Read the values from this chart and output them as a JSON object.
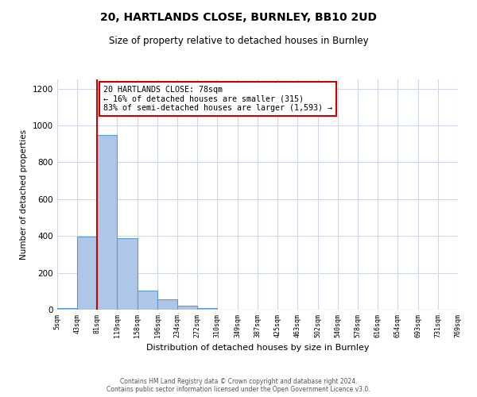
{
  "title": "20, HARTLANDS CLOSE, BURNLEY, BB10 2UD",
  "subtitle": "Size of property relative to detached houses in Burnley",
  "xlabel": "Distribution of detached houses by size in Burnley",
  "ylabel": "Number of detached properties",
  "bar_edges": [
    5,
    43,
    81,
    119,
    158,
    196,
    234,
    272,
    310,
    349,
    387,
    425,
    463,
    502,
    540,
    578,
    616,
    654,
    693,
    731,
    769
  ],
  "bar_heights": [
    10,
    395,
    950,
    390,
    105,
    55,
    22,
    8,
    2,
    0,
    0,
    0,
    0,
    0,
    0,
    0,
    0,
    0,
    0,
    0
  ],
  "bar_color": "#aec6e8",
  "bar_edge_color": "#5b9bd5",
  "property_line_x": 81,
  "property_line_color": "#cc0000",
  "annotation_text": "20 HARTLANDS CLOSE: 78sqm\n← 16% of detached houses are smaller (315)\n83% of semi-detached houses are larger (1,593) →",
  "annotation_box_color": "#cc0000",
  "ylim": [
    0,
    1250
  ],
  "yticks": [
    0,
    200,
    400,
    600,
    800,
    1000,
    1200
  ],
  "tick_labels": [
    "5sqm",
    "43sqm",
    "81sqm",
    "119sqm",
    "158sqm",
    "196sqm",
    "234sqm",
    "272sqm",
    "310sqm",
    "349sqm",
    "387sqm",
    "425sqm",
    "463sqm",
    "502sqm",
    "540sqm",
    "578sqm",
    "616sqm",
    "654sqm",
    "693sqm",
    "731sqm",
    "769sqm"
  ],
  "footnote": "Contains HM Land Registry data © Crown copyright and database right 2024.\nContains public sector information licensed under the Open Government Licence v3.0.",
  "bg_color": "#ffffff",
  "grid_color": "#d0d8e8"
}
